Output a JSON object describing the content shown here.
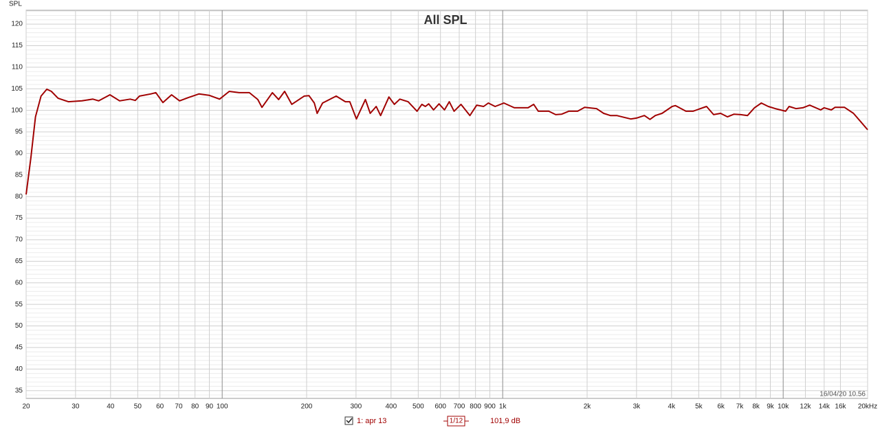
{
  "chart_data": {
    "type": "line",
    "title": "All SPL",
    "y_label": "SPL",
    "timestamp": "16/04/20 10.56",
    "smoothing": "1/12",
    "cursor_value": "101,9 dB",
    "log_x": true,
    "grid": true,
    "xlim": [
      20,
      20000
    ],
    "ylim": [
      33.2,
      123.2
    ],
    "xticks": [
      20,
      30,
      40,
      50,
      60,
      70,
      80,
      90,
      100,
      200,
      300,
      400,
      500,
      600,
      700,
      800,
      900,
      {
        "value": 1000,
        "label": "1k"
      },
      {
        "value": 2000,
        "label": "2k"
      },
      {
        "value": 3000,
        "label": "3k"
      },
      {
        "value": 4000,
        "label": "4k"
      },
      {
        "value": 5000,
        "label": "5k"
      },
      {
        "value": 6000,
        "label": "6k"
      },
      {
        "value": 7000,
        "label": "7k"
      },
      {
        "value": 8000,
        "label": "8k"
      },
      {
        "value": 9000,
        "label": "9k"
      },
      {
        "value": 10000,
        "label": "10k"
      },
      {
        "value": 12000,
        "label": "12k"
      },
      {
        "value": 14000,
        "label": "14k"
      },
      {
        "value": 16000,
        "label": "16k"
      },
      {
        "value": 20000,
        "label": "20kHz"
      }
    ],
    "yticks": [
      35,
      40,
      45,
      50,
      55,
      60,
      65,
      70,
      75,
      80,
      85,
      90,
      95,
      100,
      105,
      110,
      115,
      120
    ],
    "x": [
      20,
      20.8,
      21.6,
      22.6,
      23.7,
      24.6,
      26.0,
      28.3,
      31.6,
      34.6,
      36.3,
      39.8,
      43.1,
      47.0,
      49.0,
      50.7,
      55.6,
      58.0,
      61.5,
      66,
      70.5,
      76,
      82.6,
      89.8,
      97.9,
      106,
      115,
      125,
      134,
      138.6,
      151,
      159,
      167,
      177,
      196,
      204,
      213,
      218,
      228,
      255,
      275,
      285,
      301,
      324,
      337,
      354,
      367,
      393,
      411,
      430,
      460,
      495,
      515,
      530,
      545,
      567,
      593,
      620,
      645,
      671,
      710,
      764,
      808,
      855,
      889,
      940,
      1010,
      1100,
      1232,
      1290,
      1340,
      1460,
      1545,
      1620,
      1720,
      1850,
      1960,
      2160,
      2290,
      2420,
      2550,
      2860,
      3000,
      3200,
      3350,
      3500,
      3700,
      4020,
      4130,
      4500,
      4770,
      5330,
      5650,
      5980,
      6330,
      6670,
      7060,
      7460,
      7900,
      8360,
      8850,
      9370,
      10200,
      10500,
      11100,
      11750,
      12430,
      13600,
      14000,
      14850,
      15300,
      16550,
      17800,
      18820,
      20000
    ],
    "series": [
      {
        "name": "1: apr 13",
        "color": "#a00000",
        "values": [
          80.5,
          89.0,
          98.5,
          103.3,
          104.9,
          104.4,
          102.8,
          102.0,
          102.2,
          102.6,
          102.2,
          103.6,
          102.2,
          102.6,
          102.3,
          103.3,
          103.8,
          104.1,
          101.8,
          103.6,
          102.2,
          103.0,
          103.8,
          103.5,
          102.6,
          104.4,
          104.1,
          104.1,
          102.5,
          100.7,
          104.1,
          102.5,
          104.4,
          101.4,
          103.3,
          103.4,
          101.7,
          99.3,
          101.7,
          103.3,
          102.0,
          102.0,
          98.0,
          102.5,
          99.3,
          100.9,
          98.8,
          103.1,
          101.4,
          102.6,
          102.0,
          99.8,
          101.4,
          100.9,
          101.5,
          100.1,
          101.5,
          100.1,
          102.0,
          99.8,
          101.4,
          98.8,
          101.2,
          100.9,
          101.7,
          100.9,
          101.7,
          100.6,
          100.6,
          101.4,
          99.8,
          99.8,
          99.0,
          99.1,
          99.8,
          99.8,
          100.7,
          100.4,
          99.3,
          98.8,
          98.8,
          98.0,
          98.2,
          98.8,
          97.9,
          98.8,
          99.3,
          100.9,
          101.1,
          99.8,
          99.8,
          100.9,
          99.0,
          99.3,
          98.5,
          99.1,
          99.0,
          98.8,
          100.6,
          101.7,
          100.9,
          100.4,
          99.8,
          100.9,
          100.4,
          100.6,
          101.2,
          100.1,
          100.6,
          100.1,
          100.7,
          100.7,
          99.3,
          97.5,
          95.5
        ]
      }
    ]
  }
}
